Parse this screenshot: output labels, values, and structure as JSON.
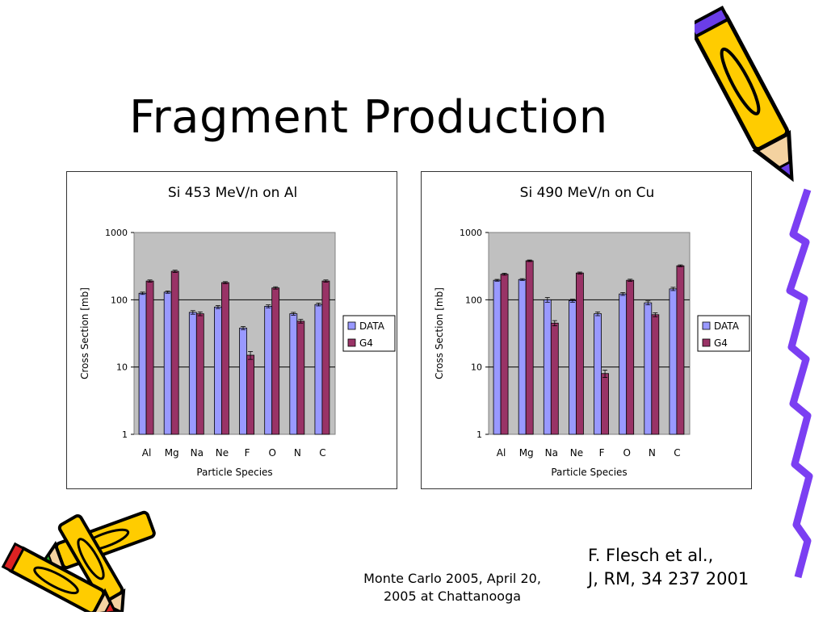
{
  "slide": {
    "title": "Fragment Production",
    "citation": [
      "F. Flesch et al.,",
      "J, RM, 34 237 2001"
    ],
    "footer": [
      "Monte Carlo 2005, April 20,",
      "2005 at Chattanooga"
    ]
  },
  "clipart": [
    "pencil-icon",
    "crayons-icon",
    "ribbon-icon"
  ],
  "chart_data": [
    {
      "type": "bar",
      "title": "Si 453 MeV/n on Al",
      "xlabel": "Particle Species",
      "ylabel": "Cross Section [mb]",
      "yscale": "log",
      "ylim": [
        1,
        1000
      ],
      "yticks": [
        "1",
        "10",
        "100",
        "1000"
      ],
      "grid": true,
      "legend": "right",
      "categories": [
        "Al",
        "Mg",
        "Na",
        "Ne",
        "F",
        "O",
        "N",
        "C"
      ],
      "series": [
        {
          "name": "DATA",
          "color": "#9999ff",
          "values": [
            125,
            130,
            65,
            78,
            38,
            80,
            62,
            85
          ],
          "errors": [
            5,
            5,
            4,
            4,
            2,
            4,
            3,
            4
          ]
        },
        {
          "name": "G4",
          "color": "#993366",
          "values": [
            190,
            265,
            62,
            180,
            15,
            150,
            48,
            190
          ],
          "errors": [
            7,
            10,
            4,
            6,
            2,
            6,
            3,
            7
          ]
        }
      ]
    },
    {
      "type": "bar",
      "title": "Si 490 MeV/n on Cu",
      "xlabel": "Particle Species",
      "ylabel": "Cross Section [mb]",
      "yscale": "log",
      "ylim": [
        1,
        1000
      ],
      "yticks": [
        "1",
        "10",
        "100",
        "1000"
      ],
      "grid": true,
      "legend": "right",
      "categories": [
        "Al",
        "Mg",
        "Na",
        "Ne",
        "F",
        "O",
        "N",
        "C"
      ],
      "series": [
        {
          "name": "DATA",
          "color": "#9999ff",
          "values": [
            195,
            200,
            100,
            97,
            62,
            122,
            90,
            145
          ],
          "errors": [
            6,
            6,
            8,
            5,
            4,
            6,
            6,
            8
          ]
        },
        {
          "name": "G4",
          "color": "#993366",
          "values": [
            240,
            380,
            45,
            250,
            8,
            195,
            60,
            320
          ],
          "errors": [
            8,
            10,
            4,
            8,
            1,
            7,
            4,
            10
          ]
        }
      ]
    }
  ]
}
